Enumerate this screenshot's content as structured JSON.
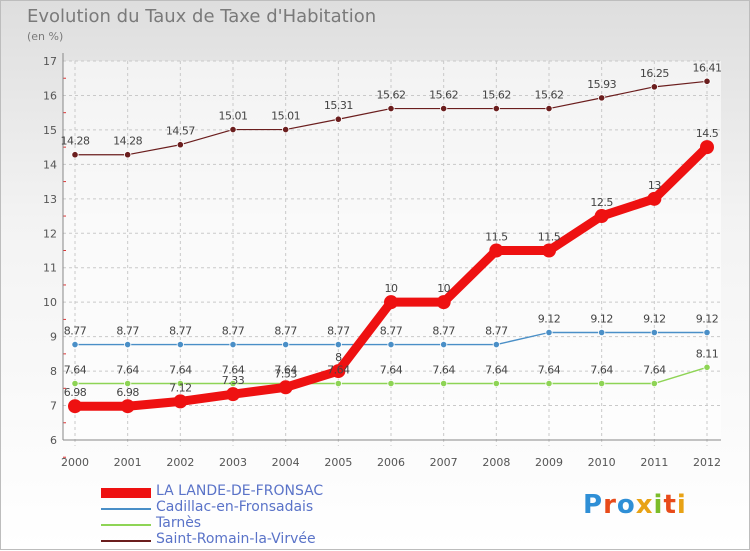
{
  "title": "Evolution du Taux de Taxe d'Habitation",
  "unit": "(en %)",
  "logo": {
    "letters": [
      "P",
      "r",
      "o",
      "x",
      "i",
      "t",
      "i"
    ],
    "colors": [
      "#2f8fd6",
      "#e84b1a",
      "#2f8fd6",
      "#e8a215",
      "#7bbd2a",
      "#e84b1a",
      "#e8a215"
    ]
  },
  "chart_data": {
    "type": "line",
    "x": [
      "2000",
      "2001",
      "2002",
      "2003",
      "2004",
      "2005",
      "2006",
      "2007",
      "2008",
      "2009",
      "2010",
      "2011",
      "2012"
    ],
    "ylim": [
      6,
      17
    ],
    "yticks": [
      "6",
      "7",
      "8",
      "9",
      "10",
      "11",
      "12",
      "13",
      "14",
      "15",
      "16",
      "17"
    ],
    "grid": true,
    "legend_position": "bottom-left",
    "series": [
      {
        "name": "LA LANDE-DE-FRONSAC",
        "color": "#ee1111",
        "values": [
          6.98,
          6.98,
          7.12,
          7.33,
          7.53,
          8,
          10,
          10,
          11.5,
          11.5,
          12.5,
          13,
          14.5
        ],
        "labels": [
          "6.98",
          "6.98",
          "7.12",
          "7.33",
          "7.53",
          "8",
          "10",
          "10",
          "11.5",
          "11.5",
          "12.5",
          "13",
          "14.5"
        ]
      },
      {
        "name": "Cadillac-en-Fronsadais",
        "color": "#4a8fc7",
        "values": [
          8.77,
          8.77,
          8.77,
          8.77,
          8.77,
          8.77,
          8.77,
          8.77,
          8.77,
          9.12,
          9.12,
          9.12,
          9.12
        ],
        "labels": [
          "8.77",
          "8.77",
          "8.77",
          "8.77",
          "8.77",
          "8.77",
          "8.77",
          "8.77",
          "8.77",
          "9.12",
          "9.12",
          "9.12",
          "9.12"
        ]
      },
      {
        "name": "Tarnès",
        "color": "#8ed455",
        "values": [
          7.64,
          7.64,
          7.64,
          7.64,
          7.64,
          7.64,
          7.64,
          7.64,
          7.64,
          7.64,
          7.64,
          7.64,
          8.11
        ],
        "labels": [
          "7.64",
          "7.64",
          "7.64",
          "7.64",
          "7.64",
          "7.64",
          "7.64",
          "7.64",
          "7.64",
          "7.64",
          "7.64",
          "7.64",
          "8.11"
        ]
      },
      {
        "name": "Saint-Romain-la-Virvée",
        "color": "#6b1e1e",
        "values": [
          14.28,
          14.28,
          14.57,
          15.01,
          15.01,
          15.31,
          15.62,
          15.62,
          15.62,
          15.62,
          15.93,
          16.25,
          16.41
        ],
        "labels": [
          "14.28",
          "14.28",
          "14.57",
          "15.01",
          "15.01",
          "15.31",
          "15.62",
          "15.62",
          "15.62",
          "15.62",
          "15.93",
          "16.25",
          "16.41"
        ]
      }
    ]
  }
}
